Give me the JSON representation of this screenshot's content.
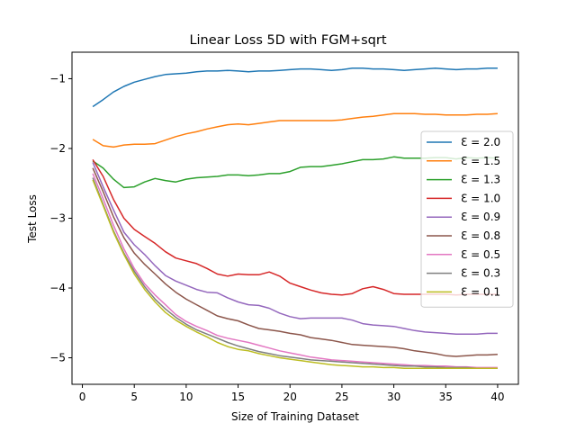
{
  "chart_data": {
    "type": "line",
    "title": "Linear Loss 5D with FGM+sqrt",
    "xlabel": "Size of Training Dataset",
    "ylabel": "Test Loss",
    "xlim": [
      -1,
      42
    ],
    "ylim": [
      -5.38,
      -0.62
    ],
    "xticks": [
      0,
      5,
      10,
      15,
      20,
      25,
      30,
      35,
      40
    ],
    "yticks": [
      -5,
      -4,
      -3,
      -2,
      -1
    ],
    "grid": false,
    "legend_position": "right",
    "x": [
      1,
      2,
      3,
      4,
      5,
      6,
      7,
      8,
      9,
      10,
      11,
      12,
      13,
      14,
      15,
      16,
      17,
      18,
      19,
      20,
      21,
      22,
      23,
      24,
      25,
      26,
      27,
      28,
      29,
      30,
      31,
      32,
      33,
      34,
      35,
      36,
      37,
      38,
      39,
      40
    ],
    "series": [
      {
        "name": "Ɛ = 2.0",
        "color": "#1f77b4",
        "values": [
          -1.4,
          -1.3,
          -1.19,
          -1.11,
          -1.05,
          -1.01,
          -0.97,
          -0.94,
          -0.93,
          -0.92,
          -0.9,
          -0.89,
          -0.89,
          -0.88,
          -0.89,
          -0.9,
          -0.89,
          -0.89,
          -0.88,
          -0.87,
          -0.86,
          -0.86,
          -0.87,
          -0.88,
          -0.87,
          -0.85,
          -0.85,
          -0.86,
          -0.86,
          -0.87,
          -0.88,
          -0.87,
          -0.86,
          -0.85,
          -0.86,
          -0.87,
          -0.86,
          -0.86,
          -0.85,
          -0.85
        ]
      },
      {
        "name": "Ɛ = 1.5",
        "color": "#ff7f0e",
        "values": [
          -1.87,
          -1.96,
          -1.98,
          -1.95,
          -1.94,
          -1.94,
          -1.93,
          -1.88,
          -1.83,
          -1.79,
          -1.76,
          -1.72,
          -1.69,
          -1.66,
          -1.65,
          -1.66,
          -1.64,
          -1.62,
          -1.6,
          -1.6,
          -1.6,
          -1.6,
          -1.6,
          -1.6,
          -1.59,
          -1.57,
          -1.55,
          -1.54,
          -1.52,
          -1.5,
          -1.5,
          -1.5,
          -1.51,
          -1.51,
          -1.52,
          -1.52,
          -1.52,
          -1.51,
          -1.51,
          -1.5
        ]
      },
      {
        "name": "Ɛ = 1.3",
        "color": "#2ca02c",
        "values": [
          -2.18,
          -2.28,
          -2.44,
          -2.56,
          -2.55,
          -2.48,
          -2.43,
          -2.46,
          -2.48,
          -2.44,
          -2.42,
          -2.41,
          -2.4,
          -2.38,
          -2.38,
          -2.39,
          -2.38,
          -2.36,
          -2.36,
          -2.33,
          -2.27,
          -2.26,
          -2.26,
          -2.24,
          -2.22,
          -2.19,
          -2.16,
          -2.16,
          -2.15,
          -2.12,
          -2.14,
          -2.14,
          -2.14,
          -2.13,
          -2.13,
          -2.15,
          -2.13,
          -2.14,
          -2.13,
          -2.14
        ]
      },
      {
        "name": "Ɛ = 1.0",
        "color": "#d62728",
        "values": [
          -2.16,
          -2.4,
          -2.73,
          -3.0,
          -3.16,
          -3.26,
          -3.36,
          -3.48,
          -3.57,
          -3.61,
          -3.65,
          -3.72,
          -3.8,
          -3.83,
          -3.8,
          -3.81,
          -3.81,
          -3.77,
          -3.83,
          -3.93,
          -3.98,
          -4.03,
          -4.07,
          -4.09,
          -4.1,
          -4.08,
          -4.01,
          -3.98,
          -4.02,
          -4.08,
          -4.09,
          -4.09,
          -4.09,
          -4.09,
          -4.09,
          -4.1,
          -4.09,
          -4.09,
          -4.09,
          -4.09
        ]
      },
      {
        "name": "Ɛ = 0.9",
        "color": "#9467bd",
        "values": [
          -2.2,
          -2.55,
          -2.88,
          -3.2,
          -3.38,
          -3.52,
          -3.68,
          -3.82,
          -3.9,
          -3.96,
          -4.02,
          -4.06,
          -4.07,
          -4.14,
          -4.2,
          -4.24,
          -4.25,
          -4.29,
          -4.36,
          -4.41,
          -4.44,
          -4.43,
          -4.43,
          -4.43,
          -4.43,
          -4.46,
          -4.51,
          -4.53,
          -4.54,
          -4.55,
          -4.58,
          -4.61,
          -4.63,
          -4.64,
          -4.65,
          -4.66,
          -4.66,
          -4.66,
          -4.65,
          -4.65
        ]
      },
      {
        "name": "Ɛ = 0.8",
        "color": "#8c564b",
        "values": [
          -2.28,
          -2.62,
          -2.98,
          -3.28,
          -3.5,
          -3.66,
          -3.8,
          -3.94,
          -4.06,
          -4.16,
          -4.24,
          -4.32,
          -4.4,
          -4.44,
          -4.47,
          -4.53,
          -4.58,
          -4.6,
          -4.62,
          -4.65,
          -4.67,
          -4.71,
          -4.73,
          -4.75,
          -4.78,
          -4.81,
          -4.82,
          -4.83,
          -4.84,
          -4.85,
          -4.87,
          -4.9,
          -4.92,
          -4.94,
          -4.97,
          -4.98,
          -4.97,
          -4.96,
          -4.96,
          -4.95
        ]
      },
      {
        "name": "Ɛ = 0.5",
        "color": "#e377c2",
        "values": [
          -2.36,
          -2.72,
          -3.1,
          -3.44,
          -3.72,
          -3.94,
          -4.1,
          -4.24,
          -4.38,
          -4.48,
          -4.55,
          -4.61,
          -4.68,
          -4.72,
          -4.75,
          -4.78,
          -4.82,
          -4.86,
          -4.9,
          -4.93,
          -4.96,
          -4.99,
          -5.01,
          -5.03,
          -5.04,
          -5.05,
          -5.06,
          -5.07,
          -5.08,
          -5.09,
          -5.1,
          -5.11,
          -5.11,
          -5.12,
          -5.12,
          -5.13,
          -5.13,
          -5.14,
          -5.14,
          -5.14
        ]
      },
      {
        "name": "Ɛ = 0.3",
        "color": "#7f7f7f",
        "values": [
          -2.42,
          -2.8,
          -3.18,
          -3.5,
          -3.76,
          -3.98,
          -4.16,
          -4.3,
          -4.42,
          -4.52,
          -4.6,
          -4.66,
          -4.72,
          -4.78,
          -4.83,
          -4.87,
          -4.91,
          -4.94,
          -4.97,
          -4.99,
          -5.01,
          -5.03,
          -5.04,
          -5.05,
          -5.06,
          -5.07,
          -5.08,
          -5.09,
          -5.1,
          -5.11,
          -5.12,
          -5.12,
          -5.13,
          -5.13,
          -5.14,
          -5.14,
          -5.14,
          -5.15,
          -5.15,
          -5.15
        ]
      },
      {
        "name": "Ɛ = 0.1",
        "color": "#bcbd22",
        "values": [
          -2.45,
          -2.82,
          -3.2,
          -3.52,
          -3.8,
          -4.02,
          -4.2,
          -4.35,
          -4.46,
          -4.55,
          -4.63,
          -4.7,
          -4.78,
          -4.84,
          -4.88,
          -4.9,
          -4.94,
          -4.97,
          -5.0,
          -5.02,
          -5.04,
          -5.06,
          -5.08,
          -5.1,
          -5.11,
          -5.12,
          -5.13,
          -5.13,
          -5.14,
          -5.14,
          -5.15,
          -5.15,
          -5.15,
          -5.15,
          -5.15,
          -5.15,
          -5.15,
          -5.15,
          -5.15,
          -5.15
        ]
      }
    ]
  }
}
